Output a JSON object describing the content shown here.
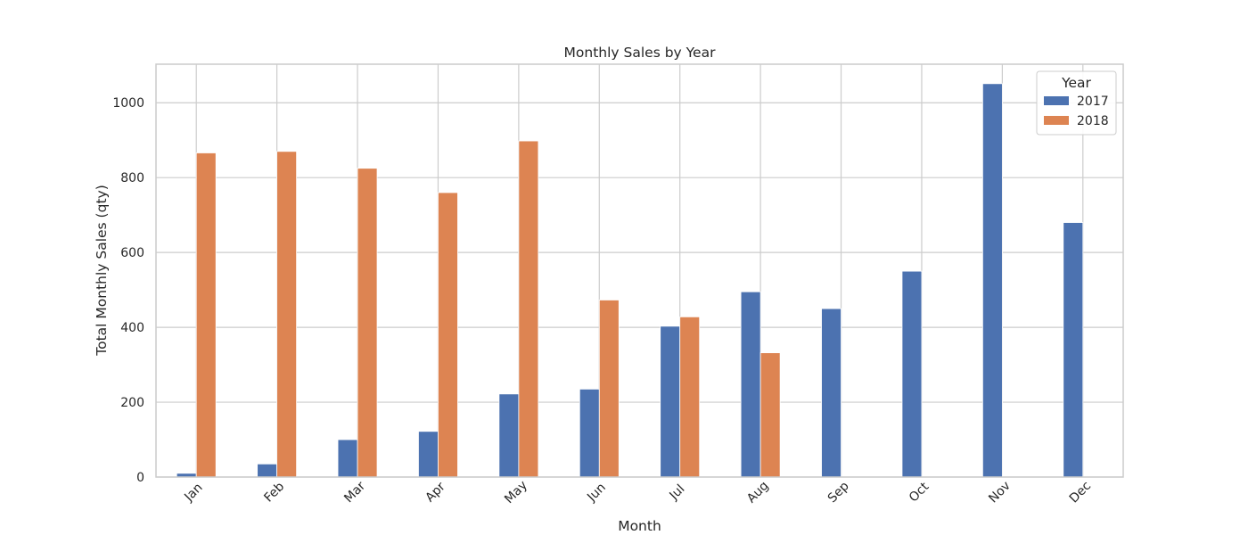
{
  "chart_data": {
    "type": "bar",
    "title": "Monthly Sales by Year",
    "xlabel": "Month",
    "ylabel": "Total Monthly Sales (qty)",
    "categories": [
      "Jan",
      "Feb",
      "Mar",
      "Apr",
      "May",
      "Jun",
      "Jul",
      "Aug",
      "Sep",
      "Oct",
      "Nov",
      "Dec"
    ],
    "series": [
      {
        "name": "2017",
        "color": "#4c72b0",
        "values": [
          10,
          35,
          100,
          122,
          222,
          235,
          403,
          495,
          450,
          550,
          1051,
          680
        ]
      },
      {
        "name": "2018",
        "color": "#dd8452",
        "values": [
          866,
          870,
          825,
          760,
          898,
          473,
          428,
          332,
          0,
          0,
          0,
          0
        ]
      }
    ],
    "ylim": [
      0,
      1103
    ],
    "yticks": [
      0,
      200,
      400,
      600,
      800,
      1000
    ],
    "legend": {
      "title": "Year",
      "placement": "top-right"
    },
    "grid": true,
    "xtick_rotation": -45
  }
}
